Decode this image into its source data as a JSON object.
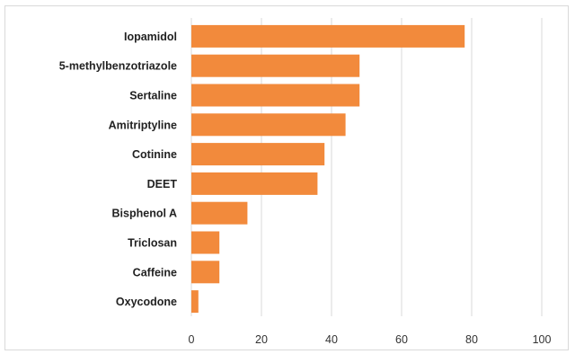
{
  "chart_data": {
    "type": "bar",
    "orientation": "horizontal",
    "categories": [
      "Iopamidol",
      "5-methylbenzotriazole",
      "Sertaline",
      "Amitriptyline",
      "Cotinine",
      "DEET",
      "Bisphenol A",
      "Triclosan",
      "Caffeine",
      "Oxycodone"
    ],
    "values": [
      78,
      48,
      48,
      44,
      38,
      36,
      16,
      8,
      8,
      2
    ],
    "xlim": [
      0,
      100
    ],
    "xticks": [
      "0",
      "20",
      "40",
      "60",
      "80",
      "100"
    ],
    "grid": true,
    "title": "",
    "xlabel": "",
    "ylabel": "",
    "bar_color": "#f28a3c"
  }
}
